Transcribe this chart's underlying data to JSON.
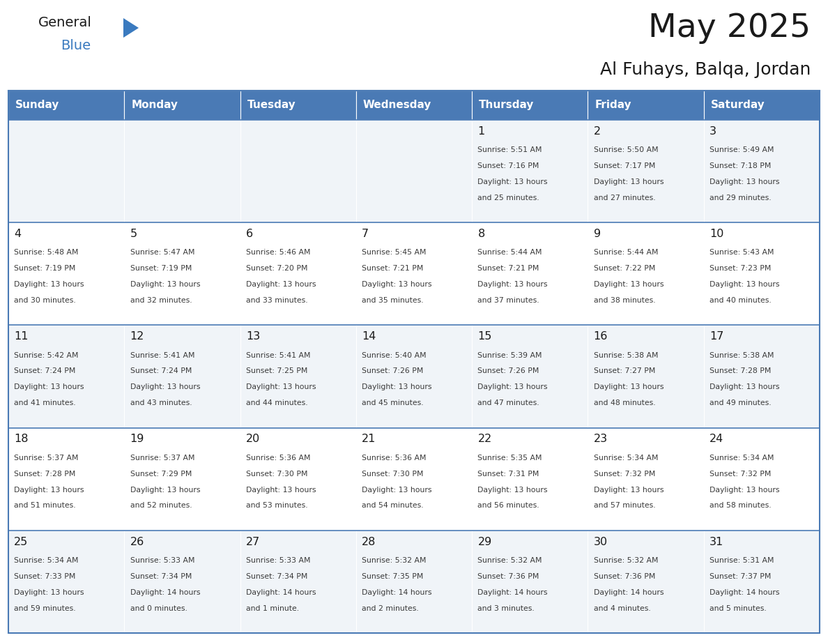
{
  "title": "May 2025",
  "subtitle": "Al Fuhays, Balqa, Jordan",
  "days_of_week": [
    "Sunday",
    "Monday",
    "Tuesday",
    "Wednesday",
    "Thursday",
    "Friday",
    "Saturday"
  ],
  "header_bg": "#4a7ab5",
  "header_text": "#ffffff",
  "odd_row_bg": "#f0f4f8",
  "even_row_bg": "#ffffff",
  "border_color": "#4a7ab5",
  "day_number_color": "#1a1a1a",
  "cell_text_color": "#3a3a3a",
  "title_color": "#1a1a1a",
  "subtitle_color": "#1a1a1a",
  "logo_general_color": "#1a1a1a",
  "logo_blue_color": "#3a7abf",
  "calendar_data": [
    [
      "",
      "",
      "",
      "",
      "1\nSunrise: 5:51 AM\nSunset: 7:16 PM\nDaylight: 13 hours\nand 25 minutes.",
      "2\nSunrise: 5:50 AM\nSunset: 7:17 PM\nDaylight: 13 hours\nand 27 minutes.",
      "3\nSunrise: 5:49 AM\nSunset: 7:18 PM\nDaylight: 13 hours\nand 29 minutes."
    ],
    [
      "4\nSunrise: 5:48 AM\nSunset: 7:19 PM\nDaylight: 13 hours\nand 30 minutes.",
      "5\nSunrise: 5:47 AM\nSunset: 7:19 PM\nDaylight: 13 hours\nand 32 minutes.",
      "6\nSunrise: 5:46 AM\nSunset: 7:20 PM\nDaylight: 13 hours\nand 33 minutes.",
      "7\nSunrise: 5:45 AM\nSunset: 7:21 PM\nDaylight: 13 hours\nand 35 minutes.",
      "8\nSunrise: 5:44 AM\nSunset: 7:21 PM\nDaylight: 13 hours\nand 37 minutes.",
      "9\nSunrise: 5:44 AM\nSunset: 7:22 PM\nDaylight: 13 hours\nand 38 minutes.",
      "10\nSunrise: 5:43 AM\nSunset: 7:23 PM\nDaylight: 13 hours\nand 40 minutes."
    ],
    [
      "11\nSunrise: 5:42 AM\nSunset: 7:24 PM\nDaylight: 13 hours\nand 41 minutes.",
      "12\nSunrise: 5:41 AM\nSunset: 7:24 PM\nDaylight: 13 hours\nand 43 minutes.",
      "13\nSunrise: 5:41 AM\nSunset: 7:25 PM\nDaylight: 13 hours\nand 44 minutes.",
      "14\nSunrise: 5:40 AM\nSunset: 7:26 PM\nDaylight: 13 hours\nand 45 minutes.",
      "15\nSunrise: 5:39 AM\nSunset: 7:26 PM\nDaylight: 13 hours\nand 47 minutes.",
      "16\nSunrise: 5:38 AM\nSunset: 7:27 PM\nDaylight: 13 hours\nand 48 minutes.",
      "17\nSunrise: 5:38 AM\nSunset: 7:28 PM\nDaylight: 13 hours\nand 49 minutes."
    ],
    [
      "18\nSunrise: 5:37 AM\nSunset: 7:28 PM\nDaylight: 13 hours\nand 51 minutes.",
      "19\nSunrise: 5:37 AM\nSunset: 7:29 PM\nDaylight: 13 hours\nand 52 minutes.",
      "20\nSunrise: 5:36 AM\nSunset: 7:30 PM\nDaylight: 13 hours\nand 53 minutes.",
      "21\nSunrise: 5:36 AM\nSunset: 7:30 PM\nDaylight: 13 hours\nand 54 minutes.",
      "22\nSunrise: 5:35 AM\nSunset: 7:31 PM\nDaylight: 13 hours\nand 56 minutes.",
      "23\nSunrise: 5:34 AM\nSunset: 7:32 PM\nDaylight: 13 hours\nand 57 minutes.",
      "24\nSunrise: 5:34 AM\nSunset: 7:32 PM\nDaylight: 13 hours\nand 58 minutes."
    ],
    [
      "25\nSunrise: 5:34 AM\nSunset: 7:33 PM\nDaylight: 13 hours\nand 59 minutes.",
      "26\nSunrise: 5:33 AM\nSunset: 7:34 PM\nDaylight: 14 hours\nand 0 minutes.",
      "27\nSunrise: 5:33 AM\nSunset: 7:34 PM\nDaylight: 14 hours\nand 1 minute.",
      "28\nSunrise: 5:32 AM\nSunset: 7:35 PM\nDaylight: 14 hours\nand 2 minutes.",
      "29\nSunrise: 5:32 AM\nSunset: 7:36 PM\nDaylight: 14 hours\nand 3 minutes.",
      "30\nSunrise: 5:32 AM\nSunset: 7:36 PM\nDaylight: 14 hours\nand 4 minutes.",
      "31\nSunrise: 5:31 AM\nSunset: 7:37 PM\nDaylight: 14 hours\nand 5 minutes."
    ]
  ],
  "fig_width": 11.88,
  "fig_height": 9.18,
  "dpi": 100
}
